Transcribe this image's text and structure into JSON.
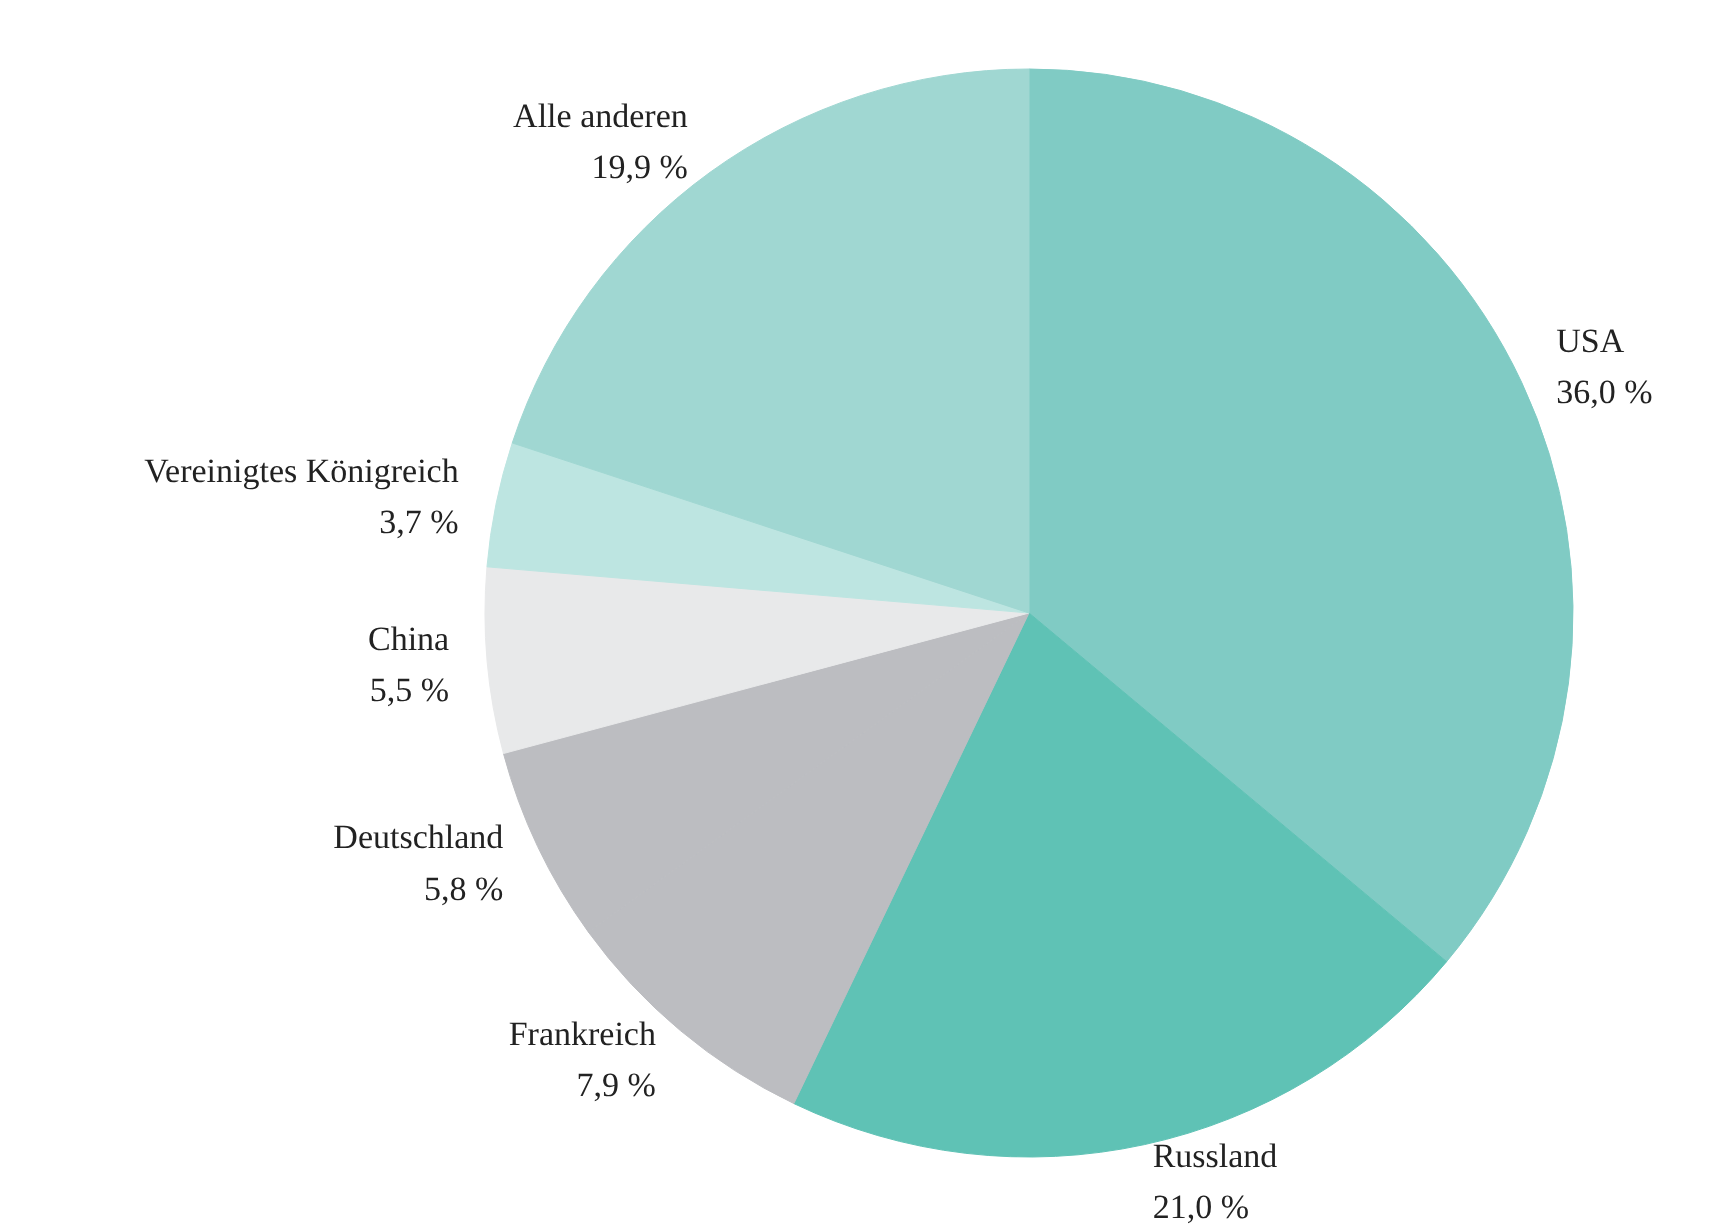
{
  "chart_data": {
    "type": "pie",
    "categories": [
      "USA",
      "Russland",
      "Frankreich",
      "Deutschland",
      "China",
      "Vereinigtes Königreich",
      "Alle anderen"
    ],
    "values": [
      36.0,
      21.0,
      7.9,
      5.8,
      5.5,
      3.7,
      19.9
    ],
    "value_labels": [
      "36,0 %",
      "21,0 %",
      "7,9 %",
      "5,8 %",
      "5,5 %",
      "3,7 %",
      "19,9 %"
    ],
    "colors": [
      "#80cbc4",
      "#5fc2b5",
      "#bcbdc1",
      "#bcbdc1",
      "#e8e9ea",
      "#bde5e1",
      "#a0d7d2"
    ]
  }
}
